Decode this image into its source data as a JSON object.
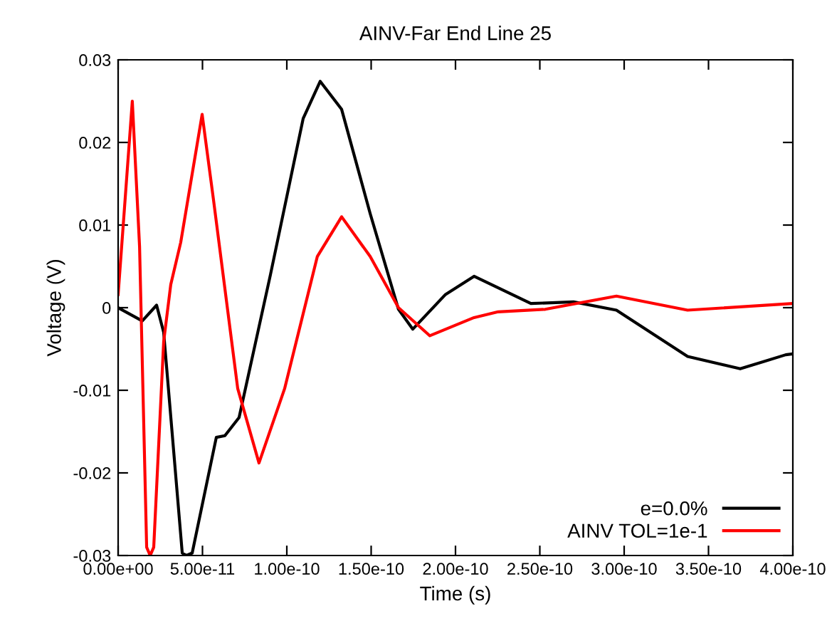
{
  "chart_data": {
    "type": "line",
    "title": "AINV-Far End Line 25",
    "xlabel": "Time (s)",
    "ylabel": "Voltage (V)",
    "xlim": [
      0,
      4e-10
    ],
    "ylim": [
      -0.03,
      0.03
    ],
    "xticks": [
      {
        "value": 0,
        "label": "0.00e+00"
      },
      {
        "value": 5e-11,
        "label": "5.00e-11"
      },
      {
        "value": 1e-10,
        "label": "1.00e-10"
      },
      {
        "value": 1.5e-10,
        "label": "1.50e-10"
      },
      {
        "value": 2e-10,
        "label": "2.00e-10"
      },
      {
        "value": 2.5e-10,
        "label": "2.50e-10"
      },
      {
        "value": 3e-10,
        "label": "3.00e-10"
      },
      {
        "value": 3.5e-10,
        "label": "3.50e-10"
      },
      {
        "value": 4e-10,
        "label": "4.00e-10"
      }
    ],
    "yticks": [
      -0.03,
      -0.02,
      -0.01,
      0,
      0.01,
      0.02,
      0.03
    ],
    "grid": false,
    "legend": "bottom right",
    "series": [
      {
        "name": "e=0.0%",
        "color": "#000000",
        "x": [
          0,
          1.43e-11,
          2.28e-11,
          2.7e-11,
          3.8e-11,
          4.05e-11,
          4.39e-11,
          5.82e-11,
          6.33e-11,
          7.17e-11,
          9.03e-11,
          1.097e-10,
          1.198e-10,
          1.325e-10,
          1.494e-10,
          1.662e-10,
          1.747e-10,
          1.941e-10,
          2.11e-10,
          2.447e-10,
          2.7e-10,
          2.954e-10,
          3.376e-10,
          3.688e-10,
          3.958e-10,
          4e-10
        ],
        "values": [
          0.0,
          -0.0016,
          0.0003,
          -0.003,
          -0.0297,
          -0.03,
          -0.0297,
          -0.0157,
          -0.0155,
          -0.0133,
          0.004,
          0.0229,
          0.0274,
          0.024,
          0.0114,
          -0.0002,
          -0.0026,
          0.0016,
          0.0038,
          0.0005,
          0.0007,
          -0.0003,
          -0.0059,
          -0.0074,
          -0.0057,
          -0.0056
        ]
      },
      {
        "name": "AINV TOL=1e-1",
        "color": "#ff0000",
        "x": [
          0,
          8.4e-12,
          1.27e-11,
          1.69e-11,
          1.9e-11,
          2.11e-11,
          2.7e-11,
          3.12e-11,
          3.71e-11,
          4.98e-11,
          5.65e-11,
          7.09e-11,
          8.35e-11,
          9.87e-11,
          1.181e-10,
          1.325e-10,
          1.494e-10,
          1.662e-10,
          1.848e-10,
          2.11e-10,
          2.253e-10,
          2.532e-10,
          2.954e-10,
          3.376e-10,
          4e-10
        ],
        "values": [
          0.0016,
          0.025,
          0.0074,
          -0.029,
          -0.03,
          -0.029,
          -0.0041,
          0.0028,
          0.0079,
          0.0234,
          0.0131,
          -0.0098,
          -0.0188,
          -0.0098,
          0.0062,
          0.011,
          0.0062,
          0.0,
          -0.0034,
          -0.0012,
          -0.0005,
          -0.0002,
          0.0014,
          -0.0003,
          0.0005
        ]
      }
    ]
  }
}
